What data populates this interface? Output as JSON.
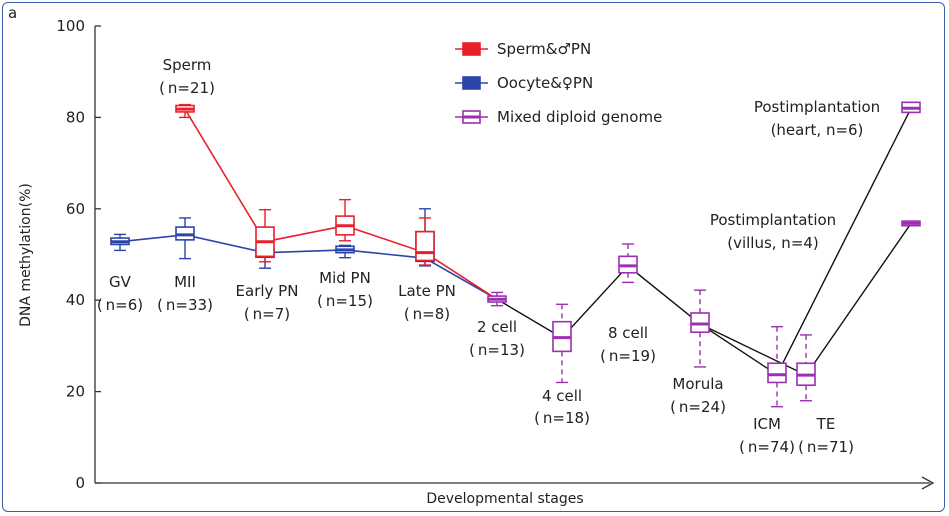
{
  "panel_label": "a",
  "chart_data": {
    "type": "line",
    "xlabel": "Developmental stages",
    "ylabel": "DNA methylation(%)",
    "ylim": [
      0,
      100
    ],
    "yticks": [
      "0",
      "20",
      "40",
      "60",
      "80",
      "100"
    ],
    "grid": false,
    "legend_position": "top-center",
    "series": [
      {
        "name": "Sperm&♂PN",
        "color": "#e8202a",
        "x": [
          "MII",
          "Early PN",
          "Mid PN",
          "Late PN",
          "2 cell"
        ],
        "values": [
          81.8,
          52.8,
          56.3,
          50.4,
          40.2
        ],
        "boxes": [
          {
            "stage": "MII",
            "q1": 81.2,
            "median": 81.8,
            "q3": 82.6,
            "lo": 80.0,
            "hi": 82.8
          },
          {
            "stage": "Early PN",
            "q1": 49.6,
            "median": 52.8,
            "q3": 56.0,
            "lo": 48.4,
            "hi": 59.8
          },
          {
            "stage": "Mid PN",
            "q1": 54.3,
            "median": 56.3,
            "q3": 58.4,
            "lo": 53.0,
            "hi": 62.0
          },
          {
            "stage": "Late PN",
            "q1": 48.7,
            "median": 50.4,
            "q3": 55.0,
            "lo": 47.7,
            "hi": 58.0
          }
        ]
      },
      {
        "name": "Oocyte&♀PN",
        "color": "#2a45a8",
        "x": [
          "GV",
          "MII",
          "Early PN",
          "Mid PN",
          "Late PN",
          "2 cell"
        ],
        "values": [
          52.8,
          54.3,
          50.4,
          51.0,
          49.2,
          40.2
        ],
        "boxes": [
          {
            "stage": "GV",
            "q1": 52.2,
            "median": 52.8,
            "q3": 53.6,
            "lo": 50.9,
            "hi": 54.4
          },
          {
            "stage": "MII",
            "q1": 53.2,
            "median": 54.3,
            "q3": 56.0,
            "lo": 49.1,
            "hi": 58.0
          },
          {
            "stage": "Early PN",
            "q1": 49.4,
            "median": 50.4,
            "q3": 51.2,
            "lo": 47.0,
            "hi": 51.5
          },
          {
            "stage": "Mid PN",
            "q1": 50.4,
            "median": 51.0,
            "q3": 51.8,
            "lo": 49.3,
            "hi": 52.0
          },
          {
            "stage": "Late PN",
            "q1": 48.5,
            "median": 49.2,
            "q3": 55.0,
            "lo": 47.5,
            "hi": 60.0
          }
        ]
      },
      {
        "name": "Mixed diploid genome",
        "color": "#9b30b0",
        "x": [
          "2 cell",
          "4 cell",
          "8 cell",
          "Morula",
          "ICM",
          "TE",
          "Postimplantation (heart)",
          "Postimplantation (villus)"
        ],
        "boxes": [
          {
            "stage": "2 cell",
            "q1": 39.6,
            "median": 40.2,
            "q3": 40.9,
            "lo": 38.8,
            "hi": 41.7
          },
          {
            "stage": "4 cell",
            "q1": 28.8,
            "median": 31.8,
            "q3": 35.3,
            "lo": 22.0,
            "hi": 39.1
          },
          {
            "stage": "8 cell",
            "q1": 46.0,
            "median": 47.5,
            "q3": 49.6,
            "lo": 43.9,
            "hi": 52.3
          },
          {
            "stage": "Morula",
            "q1": 33.0,
            "median": 34.8,
            "q3": 37.2,
            "lo": 25.4,
            "hi": 42.2
          },
          {
            "stage": "ICM",
            "q1": 22.0,
            "median": 23.7,
            "q3": 26.2,
            "lo": 16.7,
            "hi": 34.2
          },
          {
            "stage": "TE",
            "q1": 21.4,
            "median": 23.6,
            "q3": 26.2,
            "lo": 18.0,
            "hi": 32.4
          },
          {
            "stage": "Postimplantation (heart)",
            "q1": 81.1,
            "median": 82.0,
            "q3": 83.3,
            "lo": 81.1,
            "hi": 83.3
          },
          {
            "stage": "Postimplantation (villus)",
            "q1": 56.3,
            "median": 56.8,
            "q3": 57.3,
            "lo": 56.3,
            "hi": 57.3
          }
        ],
        "lines": [
          {
            "path": [
              "2 cell",
              "4 cell",
              "8 cell",
              "Morula",
              "ICM",
              "Postimplantation (heart)"
            ],
            "values": [
              40.2,
              31.8,
              47.5,
              34.8,
              23.7,
              82.0
            ]
          },
          {
            "path": [
              "Morula",
              "TE",
              "Postimplantation (villus)"
            ],
            "values": [
              34.8,
              23.6,
              56.8
            ]
          }
        ]
      }
    ],
    "stage_labels": [
      {
        "id": "GV",
        "name": "GV",
        "n": "( n=6)"
      },
      {
        "id": "MII",
        "name": "MII",
        "n": "( n=33)"
      },
      {
        "id": "Early PN",
        "name": "Early PN",
        "n": "( n=7)"
      },
      {
        "id": "Mid PN",
        "name": "Mid PN",
        "n": "( n=15)"
      },
      {
        "id": "Late PN",
        "name": "Late PN",
        "n": "( n=8)"
      },
      {
        "id": "2 cell",
        "name": "2 cell",
        "n": "( n=13)"
      },
      {
        "id": "4 cell",
        "name": "4 cell",
        "n": "( n=18)"
      },
      {
        "id": "8 cell",
        "name": "8 cell",
        "n": "( n=19)"
      },
      {
        "id": "Morula",
        "name": "Morula",
        "n": "( n=24)"
      },
      {
        "id": "ICM",
        "name": "ICM",
        "n": "( n=74)"
      },
      {
        "id": "TE",
        "name": "TE",
        "n": "( n=71)"
      },
      {
        "id": "Sperm",
        "name": "Sperm",
        "n": "( n=21)"
      },
      {
        "id": "Postimplantation (heart)",
        "name": "Postimplantation",
        "n": "(heart, n=6)"
      },
      {
        "id": "Postimplantation (villus)",
        "name": "Postimplantation",
        "n": "(villus, n=4)"
      }
    ]
  }
}
